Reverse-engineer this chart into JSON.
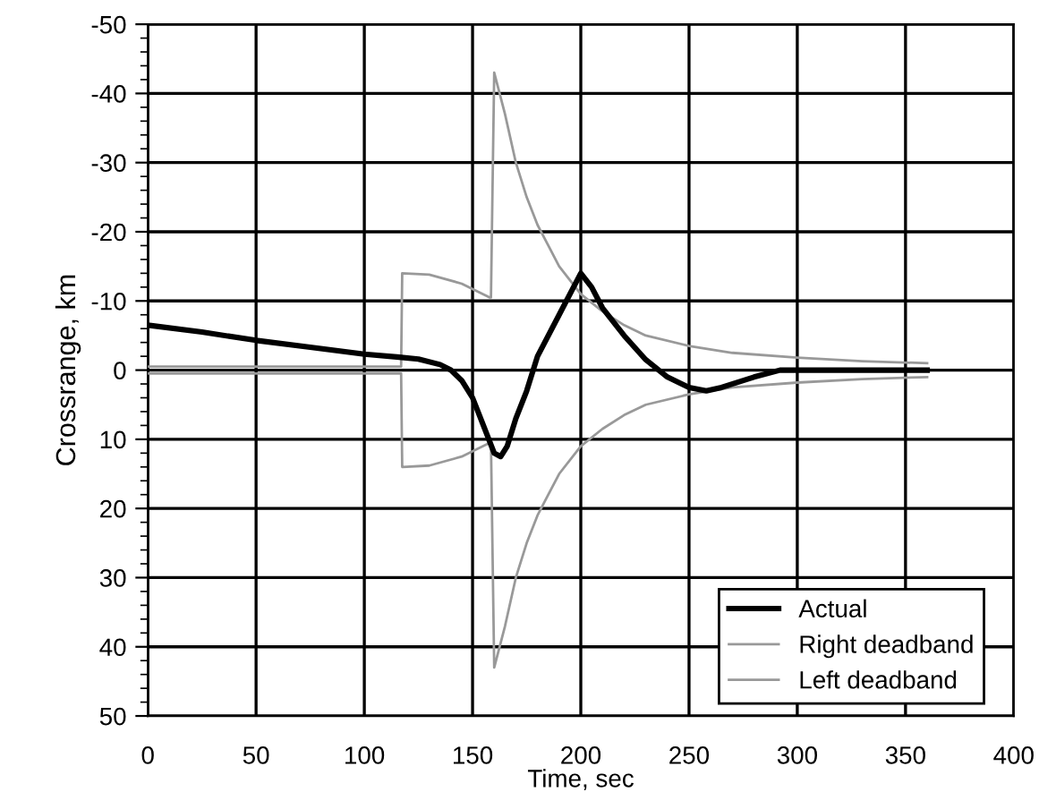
{
  "chart_data": {
    "type": "line",
    "xlabel": "Time, sec",
    "ylabel": "Crossrange, km",
    "xlim": [
      0,
      400
    ],
    "xticks": [
      0,
      50,
      100,
      150,
      200,
      250,
      300,
      350,
      400
    ],
    "ylim": [
      50,
      -50
    ],
    "yticks": [
      -50,
      -40,
      -30,
      -20,
      -10,
      0,
      10,
      20,
      30,
      40,
      50
    ],
    "grid": true,
    "legend": "bottom right",
    "marker": "none",
    "line_style": "solid",
    "series": [
      {
        "name": "Actual",
        "color": "#000000",
        "x": [
          0,
          25,
          50,
          75,
          100,
          115,
          125,
          135,
          140,
          145,
          150,
          155,
          160,
          163,
          166,
          170,
          175,
          180,
          190,
          200,
          205,
          210,
          220,
          230,
          240,
          250,
          258,
          265,
          280,
          292,
          300,
          330,
          360
        ],
        "values": [
          -6.5,
          -5.5,
          -4.3,
          -3.3,
          -2.3,
          -1.9,
          -1.6,
          -0.8,
          0,
          1.5,
          4,
          8,
          12,
          12.5,
          11,
          7,
          3,
          -2,
          -8,
          -14,
          -12,
          -9,
          -5,
          -1.5,
          1,
          2.5,
          3,
          2.5,
          1,
          0,
          0,
          0,
          0
        ]
      },
      {
        "name": "Right deadband",
        "color": "#999999",
        "x": [
          0,
          117,
          117.5,
          130,
          145,
          158,
          158.5,
          160,
          165,
          170,
          175,
          180,
          185,
          190,
          200,
          210,
          220,
          230,
          250,
          270,
          300,
          330,
          360
        ],
        "values": [
          -0.5,
          -0.5,
          -14,
          -13.8,
          -12.5,
          -10.5,
          -10.5,
          -43,
          -37,
          -30,
          -25,
          -21,
          -18,
          -15,
          -11,
          -8.5,
          -6.5,
          -5,
          -3.5,
          -2.5,
          -1.8,
          -1.3,
          -1
        ]
      },
      {
        "name": "Left deadband",
        "color": "#999999",
        "x": [
          0,
          117,
          117.5,
          130,
          145,
          158,
          158.5,
          160,
          165,
          170,
          175,
          180,
          185,
          190,
          200,
          210,
          220,
          230,
          250,
          270,
          300,
          330,
          360
        ],
        "values": [
          0.5,
          0.5,
          14,
          13.8,
          12.5,
          10.5,
          10.5,
          43,
          37,
          30,
          25,
          21,
          18,
          15,
          11,
          8.5,
          6.5,
          5,
          3.5,
          2.5,
          1.8,
          1.3,
          1
        ]
      }
    ]
  }
}
